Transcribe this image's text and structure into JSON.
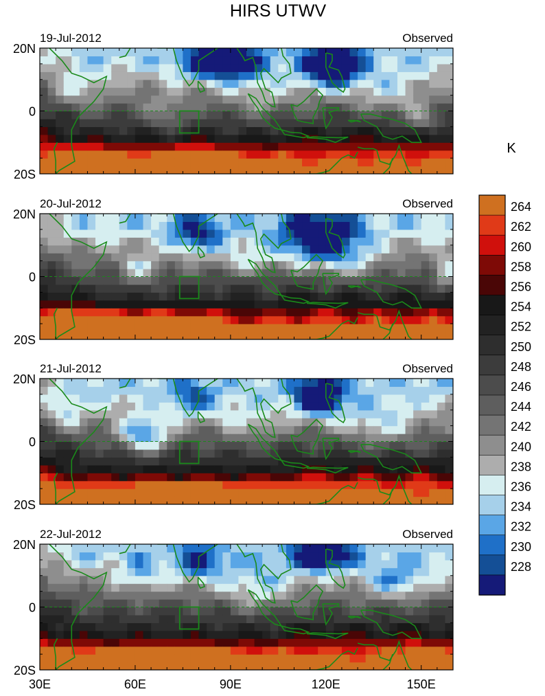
{
  "chart_data": {
    "type": "heatmap",
    "title": "HIRS UTWV",
    "unit_label": "K",
    "x_ticks": [
      "30E",
      "60E",
      "90E",
      "120E",
      "150E"
    ],
    "x_tick_values": [
      30,
      60,
      90,
      120,
      150
    ],
    "xlim": [
      30,
      160
    ],
    "ylim": [
      -20,
      20
    ],
    "y_ticks": [
      "20N",
      "0",
      "20S"
    ],
    "y_tick_values": [
      20,
      0,
      -20
    ],
    "colorbar": {
      "labels": [
        "264",
        "262",
        "260",
        "258",
        "256",
        "254",
        "252",
        "250",
        "248",
        "246",
        "244",
        "242",
        "240",
        "238",
        "236",
        "234",
        "232",
        "230",
        "228"
      ],
      "colors": [
        "#cf7020",
        "#e03a18",
        "#d0100c",
        "#7e0a06",
        "#4a0606",
        "#181818",
        "#222222",
        "#2e2e2e",
        "#3c3c3c",
        "#4c4c4c",
        "#5e5e5e",
        "#747474",
        "#8e8e8e",
        "#adadad",
        "#d6eef0",
        "#a6d0ea",
        "#5aa6e6",
        "#1f70c8",
        "#144f96",
        "#151a78"
      ]
    },
    "panels": [
      {
        "date": "19-Jul-2012",
        "label": "Observed"
      },
      {
        "date": "20-Jul-2012",
        "label": "Observed"
      },
      {
        "date": "21-Jul-2012",
        "label": "Observed"
      },
      {
        "date": "22-Jul-2012",
        "label": "Observed"
      }
    ]
  }
}
